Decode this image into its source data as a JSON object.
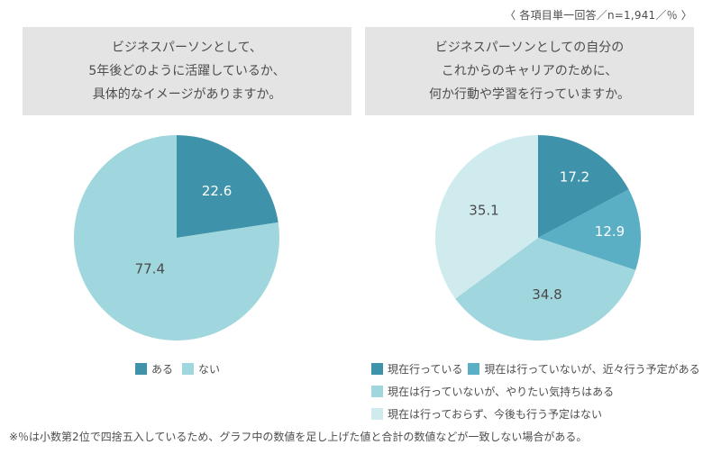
{
  "note": "〈 各項目単一回答／n=1,941／％ 〉",
  "footnote": "※％は小数第2位で四捨五入しているため、グラフ中の数値を足し上げた値と合計の数値などが一致しない場合がある。",
  "palette": {
    "dark_teal": "#3e92a9",
    "medium_teal": "#5bafc5",
    "light_blue": "#a0d6dd",
    "pale_blue": "#cfebee",
    "box_gray": "#e4e4e4",
    "text_gray": "#4d4d4d"
  },
  "chart_data": [
    {
      "type": "pie",
      "title_lines": [
        "ビジネスパーソンとして、",
        "5年後どのように活躍しているか、",
        "具体的なイメージがありますか。"
      ],
      "categories": [
        "ある",
        "ない"
      ],
      "values": [
        22.6,
        77.4
      ],
      "unit": "%",
      "n": "1,941",
      "start_angle_deg": 0,
      "direction": "clockwise",
      "colors": [
        "#3e92a9",
        "#a0d6dd"
      ],
      "value_label_colors": [
        "#ffffff",
        "#4a4a4a"
      ],
      "value_label_radius": [
        0.6,
        0.4
      ],
      "legend_position": "bottom-center"
    },
    {
      "type": "pie",
      "title_lines": [
        "ビジネスパーソンとしての自分の",
        "これからのキャリアのために、",
        "何か行動や学習を行っていますか。"
      ],
      "categories": [
        "現在行っている",
        "現在は行っていないが、近々行う予定がある",
        "現在は行っていないが、やりたい気持ちはある",
        "現在は行っておらず、今後も行う予定はない"
      ],
      "values": [
        17.2,
        12.9,
        34.8,
        35.1
      ],
      "unit": "%",
      "n": "1,941",
      "start_angle_deg": 0,
      "direction": "clockwise",
      "colors": [
        "#3e92a9",
        "#5bafc5",
        "#a0d6dd",
        "#cfebee"
      ],
      "value_label_colors": [
        "#ffffff",
        "#ffffff",
        "#4a4a4a",
        "#4a4a4a"
      ],
      "value_label_radius": [
        0.69,
        0.7,
        0.56,
        0.59
      ],
      "legend_position": "bottom-left"
    }
  ]
}
